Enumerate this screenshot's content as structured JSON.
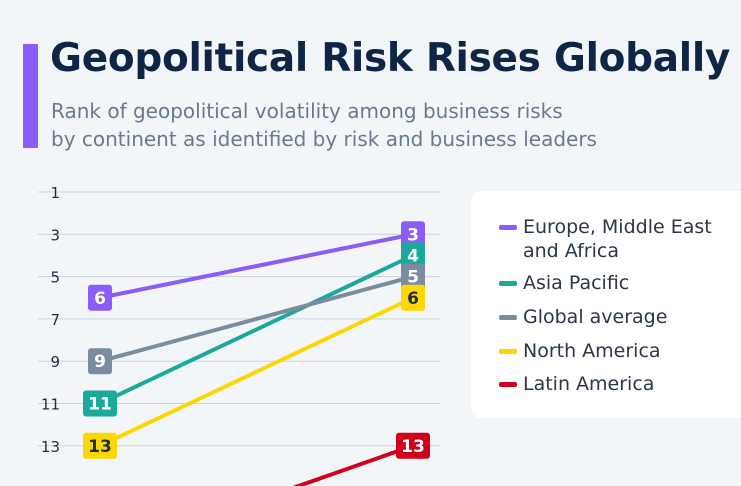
{
  "header": {
    "title": "Geopolitical Risk Rises Globally",
    "subtitle_line1": "Rank of geopolitical volatility among business risks",
    "subtitle_line2": "by continent as identified by risk and business leaders"
  },
  "colors": {
    "accent": "#8b5cf6",
    "background": "#f3f6f9"
  },
  "chart_data": {
    "type": "line",
    "title": "Geopolitical Risk Rises Globally",
    "x": [
      "",
      ""
    ],
    "y_axis": {
      "ticks": [
        1,
        3,
        5,
        7,
        9,
        11,
        13
      ],
      "inverted": true,
      "range": [
        1,
        14.4
      ]
    },
    "grid": true,
    "legend_position": "right",
    "series": [
      {
        "name": "Europe, Middle East and Africa",
        "values": [
          6,
          3
        ],
        "color": "#8b5cf6",
        "label_text_color": "#ffffff"
      },
      {
        "name": "Asia Pacific",
        "values": [
          11,
          4
        ],
        "color": "#1ba99a",
        "label_text_color": "#ffffff"
      },
      {
        "name": "Global average",
        "values": [
          9,
          5
        ],
        "color": "#7b8c9e",
        "label_text_color": "#ffffff"
      },
      {
        "name": "North America",
        "values": [
          13,
          6
        ],
        "color": "#fdd800",
        "label_text_color": "#1f2d3d"
      },
      {
        "name": "Latin America",
        "values": [
          null,
          13
        ],
        "color": "#d0021b",
        "label_text_color": "#ffffff"
      }
    ]
  },
  "legend": {
    "items": [
      {
        "label": "Europe, Middle East and Africa",
        "color": "#8b5cf6"
      },
      {
        "label": "Asia Pacific",
        "color": "#1ba99a"
      },
      {
        "label": "Global average",
        "color": "#7b8c9e"
      },
      {
        "label": "North America",
        "color": "#fdd800"
      },
      {
        "label": "Latin America",
        "color": "#d0021b"
      }
    ]
  }
}
